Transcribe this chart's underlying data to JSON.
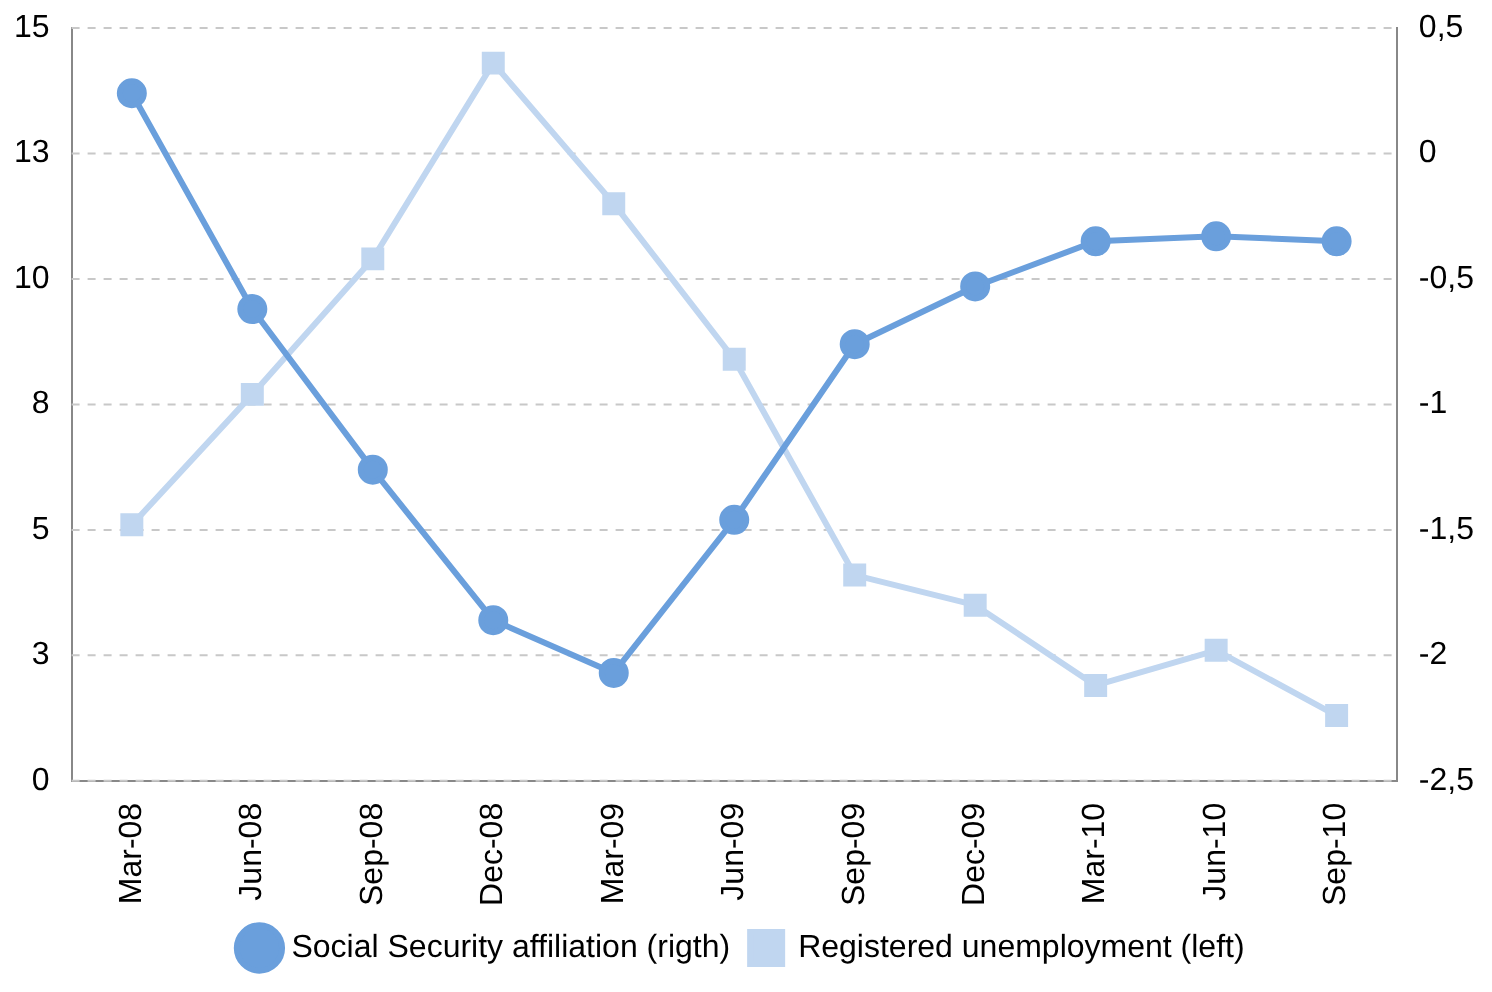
{
  "chart_data": {
    "type": "line",
    "categories": [
      "Mar-08",
      "Jun-08",
      "Sep-08",
      "Dec-08",
      "Mar-09",
      "Jun-09",
      "Sep-09",
      "Dec-09",
      "Mar-10",
      "Jun-10",
      "Sep-10"
    ],
    "series": [
      {
        "name": "Social Security affiliation (rigth)",
        "color": "#6a9fdc",
        "axis": "y2",
        "marker": "circle",
        "values": [
          0.24,
          -0.62,
          -1.26,
          -1.86,
          -2.07,
          -1.46,
          -0.76,
          -0.53,
          -0.35,
          -0.33,
          -0.35
        ]
      },
      {
        "name": "Registered unemployment (left)",
        "color": "#c0d6f0",
        "axis": "y",
        "marker": "square",
        "values": [
          5.1,
          7.7,
          10.4,
          14.3,
          11.5,
          8.4,
          4.1,
          3.5,
          1.9,
          2.6,
          1.3
        ]
      }
    ],
    "ylim": [
      0,
      15
    ],
    "yticks": [
      0,
      {
        "value": 2.5,
        "label": "3"
      },
      5,
      {
        "value": 7.5,
        "label": "8"
      },
      10,
      {
        "value": 12.5,
        "label": "13"
      },
      15
    ],
    "y2lim": [
      -2.5,
      0.5
    ],
    "y2ticks": [
      {
        "value": -2.5,
        "label": "-2,5"
      },
      -2,
      {
        "value": -1.5,
        "label": "-1,5"
      },
      -1,
      {
        "value": -0.5,
        "label": "-0,5"
      },
      0,
      {
        "value": 0.5,
        "label": "0,5"
      }
    ],
    "grid": "y",
    "legend": "bottom",
    "line_style": "solid"
  }
}
